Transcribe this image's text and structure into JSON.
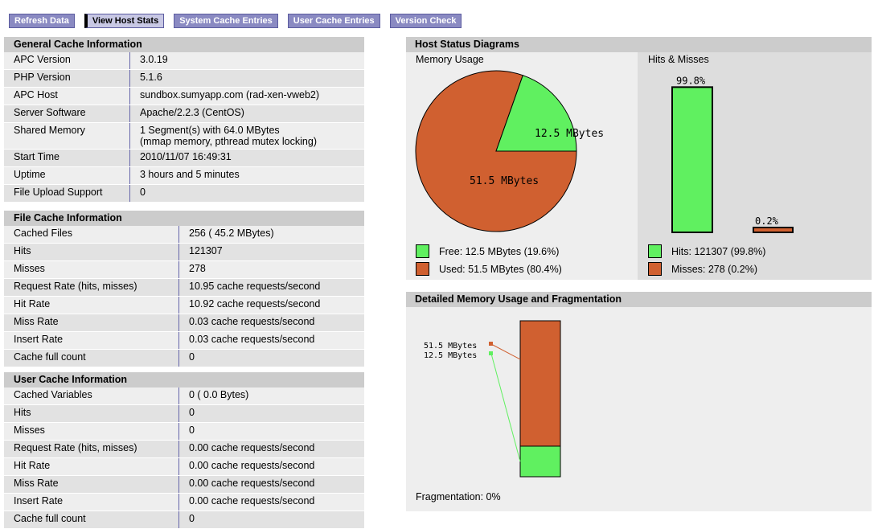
{
  "nav": [
    "Refresh Data",
    "View Host Stats",
    "System Cache Entries",
    "User Cache Entries",
    "Version Check"
  ],
  "general": {
    "title": "General Cache Information",
    "rows": [
      [
        "APC Version",
        "3.0.19"
      ],
      [
        "PHP Version",
        "5.1.6"
      ],
      [
        "APC Host",
        "sundbox.sumyapp.com (rad-xen-vweb2)"
      ],
      [
        "Server Software",
        "Apache/2.2.3 (CentOS)"
      ],
      [
        "Shared Memory",
        "1 Segment(s) with 64.0 MBytes",
        "(mmap memory, pthread mutex locking)"
      ],
      [
        "Start Time",
        "2010/11/07 16:49:31"
      ],
      [
        "Uptime",
        "3 hours and 5 minutes"
      ],
      [
        "File Upload Support",
        "0"
      ]
    ]
  },
  "file": {
    "title": "File Cache Information",
    "rows": [
      [
        "Cached Files",
        "256 ( 45.2 MBytes)"
      ],
      [
        "Hits",
        "121307"
      ],
      [
        "Misses",
        "278"
      ],
      [
        "Request Rate (hits, misses)",
        "10.95 cache requests/second"
      ],
      [
        "Hit Rate",
        "10.92 cache requests/second"
      ],
      [
        "Miss Rate",
        "0.03 cache requests/second"
      ],
      [
        "Insert Rate",
        "0.03 cache requests/second"
      ],
      [
        "Cache full count",
        "0"
      ]
    ]
  },
  "user": {
    "title": "User Cache Information",
    "rows": [
      [
        "Cached Variables",
        "0 ( 0.0 Bytes)"
      ],
      [
        "Hits",
        "0"
      ],
      [
        "Misses",
        "0"
      ],
      [
        "Request Rate (hits, misses)",
        "0.00 cache requests/second"
      ],
      [
        "Hit Rate",
        "0.00 cache requests/second"
      ],
      [
        "Miss Rate",
        "0.00 cache requests/second"
      ],
      [
        "Insert Rate",
        "0.00 cache requests/second"
      ],
      [
        "Cache full count",
        "0"
      ]
    ]
  },
  "host": {
    "title": "Host Status Diagrams",
    "memory_title": "Memory Usage",
    "hits_title": "Hits & Misses",
    "pie": {
      "free_label": "12.5 MBytes",
      "used_label": "51.5 MBytes",
      "free_pct": 19.6
    },
    "bars": {
      "hits_label": "99.8%",
      "misses_label": "0.2%",
      "hits_pct": 99.8,
      "misses_pct": 0.2
    },
    "legend": [
      "Free: 12.5 MBytes (19.6%)",
      "Used: 51.5 MBytes (80.4%)",
      "Hits: 121307 (99.8%)",
      "Misses: 278 (0.2%)"
    ]
  },
  "frag": {
    "title": "Detailed Memory Usage and Fragmentation",
    "used_label": "51.5 MBytes",
    "free_label": "12.5 MBytes",
    "used_pct": 80.4,
    "footer": "Fragmentation: 0%"
  },
  "colors": {
    "green": "#60f060",
    "orange": "#d06030"
  }
}
